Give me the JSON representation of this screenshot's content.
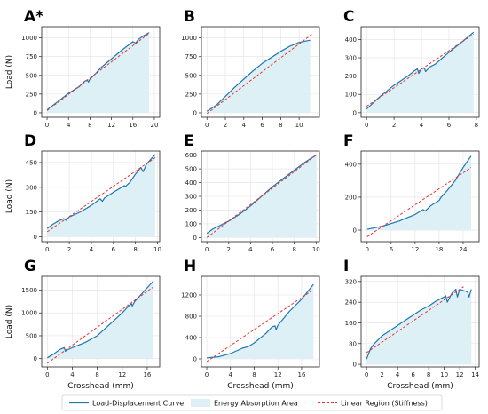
{
  "colors": {
    "curve": "#1f77b4",
    "fill": "#ddf0f5",
    "linear": "#e8332e",
    "axis": "#222222",
    "grid": "#e2e2e2"
  },
  "legend": {
    "curve_label": "Load-Displacement Curve",
    "area_label": "Energy Absorption Area",
    "linear_label": "Linear Region (Stiffness)"
  },
  "chart_data": [
    {
      "panel": "A*",
      "type": "line",
      "xlabel": "",
      "ylabel": "Load (N)",
      "xlim": [
        -1,
        21
      ],
      "ylim": [
        -60,
        1150
      ],
      "xticks": [
        0,
        4,
        8,
        12,
        16,
        20
      ],
      "yticks": [
        0,
        250,
        500,
        750,
        1000
      ],
      "grid": true,
      "curve": [
        [
          0,
          40
        ],
        [
          2,
          150
        ],
        [
          4,
          260
        ],
        [
          6,
          350
        ],
        [
          7,
          420
        ],
        [
          7.5,
          440
        ],
        [
          7.7,
          410
        ],
        [
          8,
          450
        ],
        [
          9,
          520
        ],
        [
          10,
          600
        ],
        [
          12,
          720
        ],
        [
          14,
          840
        ],
        [
          16,
          950
        ],
        [
          16.5,
          930
        ],
        [
          17,
          980
        ],
        [
          18,
          1030
        ],
        [
          19,
          1070
        ]
      ],
      "linear": [
        [
          0,
          30
        ],
        [
          19.2,
          1070
        ]
      ]
    },
    {
      "panel": "B",
      "type": "line",
      "xlabel": "",
      "ylabel": "",
      "xlim": [
        -0.6,
        12.2
      ],
      "ylim": [
        -60,
        1150
      ],
      "xticks": [
        0,
        2,
        4,
        6,
        8,
        10
      ],
      "yticks": [
        0,
        250,
        500,
        750,
        1000
      ],
      "grid": true,
      "curve": [
        [
          0,
          20
        ],
        [
          1,
          100
        ],
        [
          2,
          220
        ],
        [
          3,
          340
        ],
        [
          4,
          450
        ],
        [
          5,
          560
        ],
        [
          6,
          660
        ],
        [
          7,
          740
        ],
        [
          8,
          820
        ],
        [
          9,
          890
        ],
        [
          10,
          940
        ],
        [
          11.2,
          970
        ]
      ],
      "linear": [
        [
          0,
          -10
        ],
        [
          11.5,
          1060
        ]
      ]
    },
    {
      "panel": "C",
      "type": "line",
      "xlabel": "",
      "ylabel": "",
      "xlim": [
        -0.4,
        8.2
      ],
      "ylim": [
        -25,
        470
      ],
      "xticks": [
        0,
        2,
        4,
        6,
        8
      ],
      "yticks": [
        0,
        100,
        200,
        300,
        400
      ],
      "grid": true,
      "curve": [
        [
          0,
          20
        ],
        [
          1,
          90
        ],
        [
          2,
          150
        ],
        [
          3,
          200
        ],
        [
          3.5,
          230
        ],
        [
          3.7,
          240
        ],
        [
          3.8,
          215
        ],
        [
          4,
          240
        ],
        [
          4.2,
          245
        ],
        [
          4.3,
          225
        ],
        [
          4.6,
          250
        ],
        [
          5,
          265
        ],
        [
          6,
          330
        ],
        [
          7,
          390
        ],
        [
          7.8,
          440
        ]
      ],
      "linear": [
        [
          0,
          35
        ],
        [
          7.8,
          430
        ]
      ]
    },
    {
      "panel": "D",
      "type": "line",
      "xlabel": "",
      "ylabel": "Load (N)",
      "xlim": [
        -0.5,
        10.2
      ],
      "ylim": [
        -30,
        520
      ],
      "xticks": [
        0,
        2,
        4,
        6,
        8,
        10
      ],
      "yticks": [
        0,
        150,
        300,
        450
      ],
      "grid": true,
      "curve": [
        [
          0,
          50
        ],
        [
          0.5,
          75
        ],
        [
          1,
          95
        ],
        [
          1.5,
          110
        ],
        [
          1.7,
          100
        ],
        [
          2,
          120
        ],
        [
          3,
          150
        ],
        [
          4,
          190
        ],
        [
          4.8,
          230
        ],
        [
          5,
          215
        ],
        [
          5.2,
          235
        ],
        [
          6,
          270
        ],
        [
          7,
          310
        ],
        [
          7.1,
          305
        ],
        [
          7.5,
          330
        ],
        [
          8,
          380
        ],
        [
          8.5,
          420
        ],
        [
          8.7,
          395
        ],
        [
          9,
          440
        ],
        [
          9.8,
          500
        ]
      ],
      "linear": [
        [
          0,
          30
        ],
        [
          9.8,
          480
        ]
      ]
    },
    {
      "panel": "E",
      "type": "line",
      "xlabel": "",
      "ylabel": "",
      "xlim": [
        -0.5,
        10.3
      ],
      "ylim": [
        -30,
        630
      ],
      "xticks": [
        0,
        2,
        4,
        6,
        8,
        10
      ],
      "yticks": [
        0,
        100,
        200,
        300,
        400,
        500,
        600
      ],
      "grid": true,
      "curve": [
        [
          0,
          30
        ],
        [
          0.5,
          60
        ],
        [
          1,
          80
        ],
        [
          2,
          120
        ],
        [
          3,
          170
        ],
        [
          4,
          230
        ],
        [
          5,
          300
        ],
        [
          6,
          370
        ],
        [
          7,
          430
        ],
        [
          8,
          490
        ],
        [
          9,
          550
        ],
        [
          10,
          600
        ]
      ],
      "linear": [
        [
          0,
          0
        ],
        [
          10,
          600
        ]
      ]
    },
    {
      "panel": "F",
      "type": "line",
      "xlabel": "",
      "ylabel": "",
      "xlim": [
        -1.5,
        28
      ],
      "ylim": [
        -70,
        480
      ],
      "xticks": [
        0,
        6,
        12,
        18,
        24
      ],
      "yticks": [
        0,
        200,
        400
      ],
      "grid": true,
      "curve": [
        [
          0,
          5
        ],
        [
          4,
          25
        ],
        [
          8,
          55
        ],
        [
          12,
          95
        ],
        [
          14,
          125
        ],
        [
          14.5,
          115
        ],
        [
          16,
          150
        ],
        [
          18,
          180
        ],
        [
          18.5,
          200
        ],
        [
          20,
          240
        ],
        [
          22,
          300
        ],
        [
          24,
          380
        ],
        [
          26,
          450
        ]
      ],
      "linear": [
        [
          0,
          -40
        ],
        [
          26,
          380
        ]
      ]
    },
    {
      "panel": "G",
      "type": "line",
      "xlabel": "Crosshead (mm)",
      "ylabel": "Load (N)",
      "xlim": [
        -0.9,
        18
      ],
      "ylim": [
        -180,
        1800
      ],
      "xticks": [
        0,
        4,
        8,
        12,
        16
      ],
      "yticks": [
        0,
        500,
        1000,
        1500
      ],
      "grid": true,
      "curve": [
        [
          0,
          20
        ],
        [
          1,
          100
        ],
        [
          2,
          200
        ],
        [
          2.7,
          240
        ],
        [
          2.9,
          160
        ],
        [
          3,
          180
        ],
        [
          4,
          240
        ],
        [
          6,
          350
        ],
        [
          8,
          500
        ],
        [
          10,
          750
        ],
        [
          12,
          1000
        ],
        [
          13,
          1150
        ],
        [
          13.5,
          1200
        ],
        [
          13.6,
          1150
        ],
        [
          14,
          1250
        ],
        [
          16,
          1550
        ],
        [
          17,
          1700
        ]
      ],
      "linear": [
        [
          0,
          -100
        ],
        [
          17,
          1570
        ]
      ]
    },
    {
      "panel": "H",
      "type": "line",
      "xlabel": "Crosshead (mm)",
      "ylabel": "",
      "xlim": [
        -0.9,
        19
      ],
      "ylim": [
        -150,
        1550
      ],
      "xticks": [
        0,
        4,
        8,
        12,
        16
      ],
      "yticks": [
        0,
        400,
        800,
        1200
      ],
      "grid": true,
      "curve": [
        [
          0,
          20
        ],
        [
          2,
          40
        ],
        [
          4,
          100
        ],
        [
          6,
          200
        ],
        [
          7,
          230
        ],
        [
          8,
          300
        ],
        [
          10,
          480
        ],
        [
          11,
          600
        ],
        [
          11.5,
          620
        ],
        [
          11.7,
          550
        ],
        [
          12,
          630
        ],
        [
          14,
          900
        ],
        [
          16,
          1120
        ],
        [
          18,
          1400
        ]
      ],
      "linear": [
        [
          0,
          -50
        ],
        [
          18,
          1300
        ]
      ]
    },
    {
      "panel": "I",
      "type": "line",
      "xlabel": "Crosshead (mm)",
      "ylabel": "",
      "xlim": [
        -0.7,
        14.5
      ],
      "ylim": [
        -10,
        340
      ],
      "xticks": [
        0,
        2,
        4,
        6,
        8,
        10,
        12,
        14
      ],
      "yticks": [
        0,
        80,
        160,
        240,
        320
      ],
      "grid": true,
      "curve": [
        [
          0,
          20
        ],
        [
          0.5,
          60
        ],
        [
          1,
          80
        ],
        [
          2,
          110
        ],
        [
          3,
          130
        ],
        [
          4,
          150
        ],
        [
          5,
          170
        ],
        [
          6,
          190
        ],
        [
          7,
          210
        ],
        [
          8,
          225
        ],
        [
          9,
          245
        ],
        [
          10,
          260
        ],
        [
          10.2,
          265
        ],
        [
          10.4,
          240
        ],
        [
          11,
          275
        ],
        [
          11.5,
          290
        ],
        [
          11.7,
          260
        ],
        [
          12,
          290
        ],
        [
          13,
          280
        ],
        [
          13.2,
          260
        ],
        [
          13.5,
          290
        ]
      ],
      "linear": [
        [
          0,
          45
        ],
        [
          12.5,
          300
        ]
      ]
    }
  ]
}
